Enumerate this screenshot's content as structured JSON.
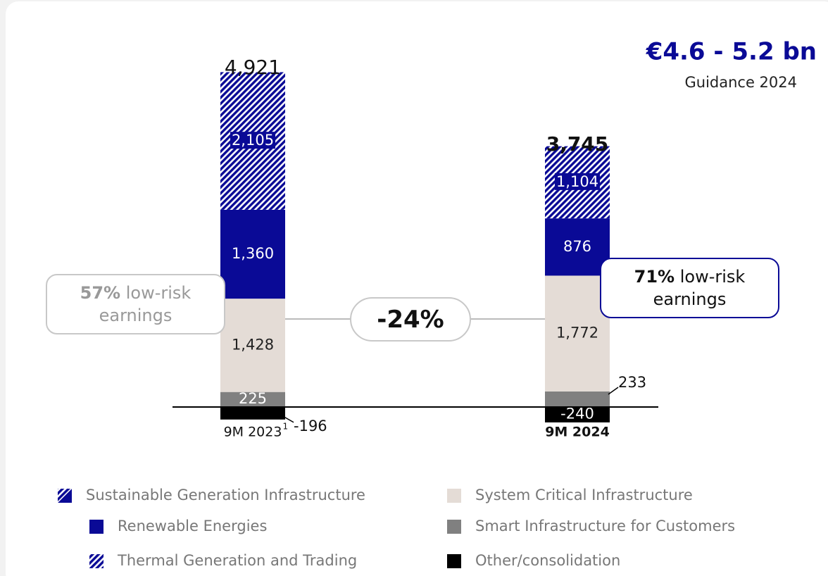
{
  "chart_data": {
    "type": "bar",
    "stacked": true,
    "categories": [
      "9M 2023",
      "9M 2024"
    ],
    "category_footnotes": [
      "1",
      null
    ],
    "ylim": [
      -500,
      5500
    ],
    "series": [
      {
        "name": "Other/consolidation",
        "color": "#000000",
        "values": [
          -196,
          -240
        ],
        "value_labels": [
          "-196",
          "-240"
        ]
      },
      {
        "name": "Smart Infrastructure for Customers",
        "color": "#808080",
        "values": [
          225,
          233
        ],
        "value_labels": [
          "225",
          "233"
        ]
      },
      {
        "name": "System Critical Infrastructure",
        "color": "#e4dcd6",
        "values": [
          1428,
          1772
        ],
        "value_labels": [
          "1,428",
          "1,772"
        ]
      },
      {
        "name": "Renewable Energies",
        "color": "#0a0a96",
        "values": [
          1360,
          876
        ],
        "value_labels": [
          "1,360",
          "876"
        ]
      },
      {
        "name": "Thermal Generation and Trading",
        "color": "#0a0a96",
        "pattern": "hatch",
        "values": [
          2105,
          1104
        ],
        "value_labels": [
          "2,105",
          "1,104"
        ]
      }
    ],
    "totals": {
      "values": [
        4921,
        3745
      ],
      "value_labels": [
        "4,921",
        "3,745"
      ]
    },
    "legend_header": "Sustainable Generation Infrastructure",
    "guidance": {
      "value": "€4.6 - 5.2 bn",
      "label": "Guidance 2024"
    },
    "change": "-24%",
    "low_risk": [
      {
        "share": "57%",
        "text": "low-risk earnings"
      },
      {
        "share": "71%",
        "text": "low-risk earnings"
      }
    ]
  }
}
